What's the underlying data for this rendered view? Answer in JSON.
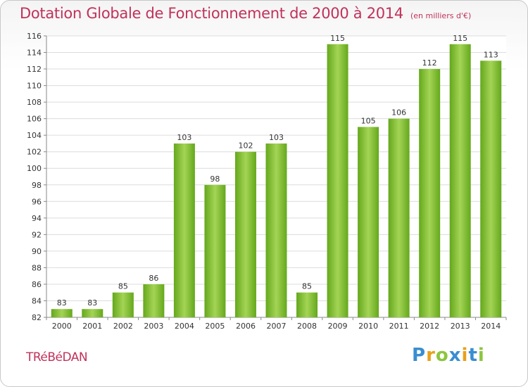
{
  "title": "Dotation Globale de Fonctionnement de 2000 à 2014",
  "subtitle": "(en milliers d'€)",
  "commune": "TRéBéDAN",
  "logo": {
    "letters": [
      "P",
      "r",
      "o",
      "x",
      "i",
      "t",
      "i"
    ],
    "colors": [
      "#3a8dd0",
      "#e8a11a",
      "#8cc63f",
      "#3a8dd0",
      "#e8a11a",
      "#3a8dd0",
      "#8cc63f"
    ]
  },
  "colors": {
    "bar_light": "#a4d455",
    "bar_dark": "#64a81c",
    "title": "#c0325a",
    "grid": "#dcdcdc"
  },
  "chart_data": {
    "type": "bar",
    "title": "Dotation Globale de Fonctionnement de 2000 à 2014",
    "subtitle": "(en milliers d'€)",
    "categories": [
      "2000",
      "2001",
      "2002",
      "2003",
      "2004",
      "2005",
      "2006",
      "2007",
      "2008",
      "2009",
      "2010",
      "2011",
      "2012",
      "2013",
      "2014"
    ],
    "values": [
      83,
      83,
      85,
      86,
      103,
      98,
      102,
      103,
      85,
      115,
      105,
      106,
      112,
      115,
      113
    ],
    "data_labels": [
      "83",
      "83",
      "85",
      "86",
      "103",
      "98",
      "102",
      "103",
      "85",
      "115",
      "105",
      "106",
      "112",
      "115",
      "113"
    ],
    "ylim": [
      82,
      116
    ],
    "yticks": [
      82,
      84,
      86,
      88,
      90,
      92,
      94,
      96,
      98,
      100,
      102,
      104,
      106,
      108,
      110,
      112,
      114,
      116
    ],
    "grid": true,
    "xlabel": "",
    "ylabel": ""
  }
}
